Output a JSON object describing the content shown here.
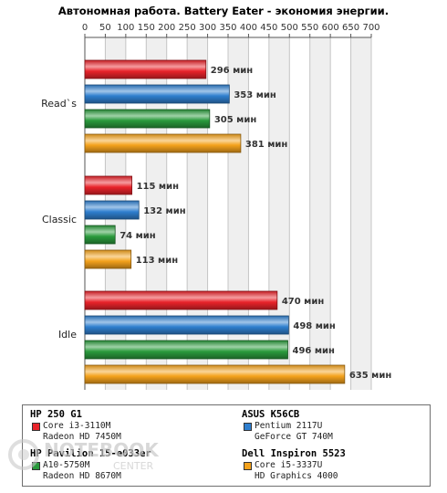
{
  "chart_data": {
    "type": "bar",
    "orientation": "horizontal",
    "title": "Автономная работа. Battery Eater - экономия энергии.",
    "xlabel": "",
    "ylabel": "",
    "xlim": [
      0,
      700
    ],
    "ticks": [
      "0",
      "50",
      "100",
      "150",
      "200",
      "250",
      "300",
      "350",
      "400",
      "450",
      "500",
      "550",
      "600",
      "650",
      "700"
    ],
    "grid": true,
    "value_suffix": " мин",
    "categories": [
      "Read`s",
      "Classic",
      "Idle"
    ],
    "series": [
      {
        "name": "HP 250 G1",
        "color": "#e8232a",
        "values": [
          296,
          115,
          470
        ]
      },
      {
        "name": "ASUS K56CB",
        "color": "#2f7fcf",
        "values": [
          353,
          132,
          498
        ]
      },
      {
        "name": "HP Pavilion 15-e033er",
        "color": "#2a9a3c",
        "values": [
          305,
          74,
          496
        ]
      },
      {
        "name": "Dell Inspiron 5523",
        "color": "#f4a21c",
        "values": [
          381,
          113,
          635
        ]
      }
    ]
  },
  "legend": {
    "entries": [
      {
        "name": "HP 250 G1",
        "lines": [
          "Core i3-3110M",
          "Radeon HD 7450M"
        ],
        "color": "#e8232a"
      },
      {
        "name": "ASUS K56CB",
        "lines": [
          "Pentium 2117U",
          "GeForce GT 740M"
        ],
        "color": "#2f7fcf"
      },
      {
        "name": "HP Pavilion 15-e033er",
        "lines": [
          "A10-5750M",
          "Radeon HD 8670M"
        ],
        "color": "#2a9a3c"
      },
      {
        "name": "Dell Inspiron 5523",
        "lines": [
          "Core i5-3337U",
          "HD Graphics 4000"
        ],
        "color": "#f4a21c"
      }
    ]
  },
  "watermark": {
    "line1": "NOTEBOOK",
    "line2": "CENTER"
  }
}
